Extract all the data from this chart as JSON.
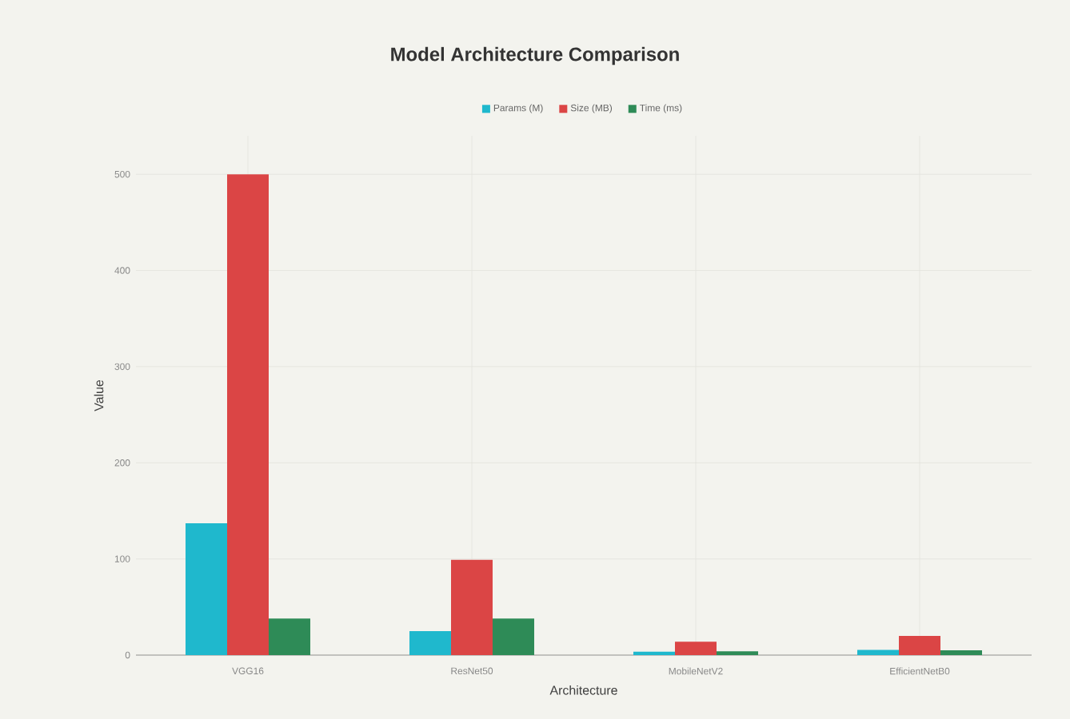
{
  "chart_data": {
    "type": "bar",
    "title": "Model Architecture Comparison",
    "xlabel": "Architecture",
    "ylabel": "Value",
    "categories": [
      "VGG16",
      "ResNet50",
      "MobileNetV2",
      "EfficientNetB0"
    ],
    "series": [
      {
        "name": "Params (M)",
        "color": "#1fb8cd",
        "values": [
          137,
          25,
          3.5,
          5.3
        ]
      },
      {
        "name": "Size (MB)",
        "color": "#db4545",
        "values": [
          500,
          99,
          14,
          20
        ]
      },
      {
        "name": "Time (ms)",
        "color": "#2e8b57",
        "values": [
          38,
          38,
          4,
          5
        ]
      }
    ],
    "ylim": [
      0,
      540
    ],
    "yticks": [
      0,
      100,
      200,
      300,
      400,
      500
    ],
    "grid": true,
    "legend": "top"
  }
}
